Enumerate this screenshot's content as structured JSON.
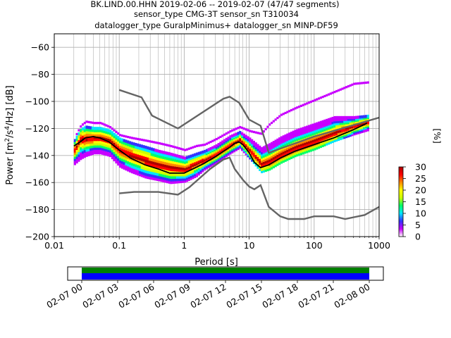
{
  "title_lines": [
    "BK.LIND.00.HHN   2019-02-06 -- 2019-02-07  (47/47 segments)",
    "sensor_type CMG-3T sensor_sn T310034",
    "datalogger_type GuralpMinimus+ datalogger_sn MINP-DF59"
  ],
  "chart_data": {
    "type": "heatmap",
    "xlabel": "Period [s]",
    "ylabel": "Power [m²/s⁴/Hz] [dB]",
    "x_scale": "log",
    "xlim": [
      0.01,
      1000
    ],
    "ylim": [
      -200,
      -50
    ],
    "x_ticks": [
      0.01,
      0.1,
      1,
      10,
      100,
      1000
    ],
    "x_tick_labels": [
      "0.01",
      "0.1",
      "1",
      "10",
      "100",
      "1000"
    ],
    "y_ticks": [
      -200,
      -180,
      -160,
      -140,
      -120,
      -100,
      -80,
      -60
    ],
    "y_tick_labels": [
      "−200",
      "−180",
      "−160",
      "−140",
      "−120",
      "−100",
      "−80",
      "−60"
    ],
    "grid": true,
    "colorbar": {
      "label": "[%]",
      "range": [
        0,
        30
      ],
      "ticks": [
        0,
        5,
        10,
        15,
        20,
        25,
        30
      ],
      "tick_labels": [
        "0",
        "5",
        "10",
        "15",
        "20",
        "25",
        "30"
      ],
      "colormap": [
        "#ffffff",
        "#c800ff",
        "#3333ff",
        "#00e5ff",
        "#00ff66",
        "#ccff00",
        "#ffff00",
        "#ff8800",
        "#ff0000",
        "#aa0000"
      ]
    },
    "mean_curve": {
      "color": "#000000",
      "points": [
        [
          0.02,
          -133
        ],
        [
          0.025,
          -130
        ],
        [
          0.03,
          -127
        ],
        [
          0.04,
          -126
        ],
        [
          0.05,
          -127
        ],
        [
          0.07,
          -130
        ],
        [
          0.1,
          -136
        ],
        [
          0.15,
          -142
        ],
        [
          0.25,
          -147
        ],
        [
          0.4,
          -150
        ],
        [
          0.6,
          -153
        ],
        [
          1,
          -153
        ],
        [
          1.5,
          -149
        ],
        [
          2,
          -146
        ],
        [
          3,
          -141
        ],
        [
          4,
          -137
        ],
        [
          5,
          -134
        ],
        [
          6,
          -131
        ],
        [
          7,
          -130
        ],
        [
          8,
          -132
        ],
        [
          10,
          -138
        ],
        [
          12,
          -145
        ],
        [
          15,
          -149
        ],
        [
          20,
          -147
        ],
        [
          30,
          -142
        ],
        [
          50,
          -137
        ],
        [
          100,
          -132
        ],
        [
          200,
          -127
        ],
        [
          400,
          -121
        ],
        [
          600,
          -117
        ],
        [
          650,
          -116
        ]
      ]
    },
    "noise_models": [
      {
        "color": "#646464",
        "points": [
          [
            0.1,
            -91.5
          ],
          [
            0.22,
            -97
          ],
          [
            0.32,
            -110.5
          ],
          [
            0.8,
            -120
          ],
          [
            4,
            -98
          ],
          [
            5,
            -96.5
          ],
          [
            7,
            -101
          ],
          [
            10,
            -113.5
          ],
          [
            15,
            -118
          ],
          [
            20,
            -138
          ],
          [
            100,
            -126
          ],
          [
            1000,
            -112
          ]
        ]
      },
      {
        "color": "#646464",
        "points": [
          [
            0.1,
            -168
          ],
          [
            0.17,
            -167
          ],
          [
            0.4,
            -167
          ],
          [
            0.8,
            -169
          ],
          [
            1.2,
            -163.5
          ],
          [
            2.5,
            -150
          ],
          [
            4,
            -143
          ],
          [
            5,
            -141.5
          ],
          [
            6,
            -150
          ],
          [
            8,
            -158
          ],
          [
            10,
            -163
          ],
          [
            12,
            -165
          ],
          [
            15,
            -162
          ],
          [
            20,
            -178
          ],
          [
            30,
            -185
          ],
          [
            40,
            -187
          ],
          [
            70,
            -187
          ],
          [
            100,
            -185
          ],
          [
            200,
            -185
          ],
          [
            300,
            -187
          ],
          [
            600,
            -184
          ],
          [
            1000,
            -178
          ]
        ]
      }
    ],
    "psd_samples": [
      {
        "period": 0.02,
        "values": [
          -146,
          -145,
          -138,
          -136,
          -132,
          -129,
          -127,
          -125
        ]
      },
      {
        "period": 0.025,
        "values": [
          -142,
          -138,
          -133,
          -128,
          -124,
          -121,
          -118
        ]
      },
      {
        "period": 0.03,
        "values": [
          -140,
          -136,
          -132,
          -128,
          -124,
          -119,
          -115,
          -112
        ]
      },
      {
        "period": 0.04,
        "values": [
          -138,
          -135,
          -131,
          -127,
          -123,
          -120,
          -116,
          -113
        ]
      },
      {
        "period": 0.05,
        "values": [
          -138,
          -134,
          -130,
          -127,
          -123,
          -120,
          -116,
          -114
        ]
      },
      {
        "period": 0.07,
        "values": [
          -140,
          -136,
          -132,
          -129,
          -125,
          -122,
          -119,
          -117
        ]
      },
      {
        "period": 0.1,
        "values": [
          -148,
          -144,
          -140,
          -136,
          -132,
          -128,
          -125,
          -121
        ]
      },
      {
        "period": 0.15,
        "values": [
          -152,
          -148,
          -144,
          -140,
          -136,
          -131,
          -127,
          -123
        ]
      },
      {
        "period": 0.25,
        "values": [
          -156,
          -152,
          -148,
          -144,
          -140,
          -134,
          -129,
          -124
        ]
      },
      {
        "period": 0.4,
        "values": [
          -158,
          -155,
          -151,
          -147,
          -143,
          -137,
          -131,
          -124
        ]
      },
      {
        "period": 0.6,
        "values": [
          -160,
          -157,
          -153,
          -149,
          -145,
          -139,
          -133,
          -124
        ]
      },
      {
        "period": 1,
        "values": [
          -159,
          -156,
          -153,
          -150,
          -147,
          -142,
          -136,
          -127
        ]
      },
      {
        "period": 1.5,
        "values": [
          -155,
          -152,
          -149,
          -146,
          -143,
          -139,
          -133
        ]
      },
      {
        "period": 2,
        "values": [
          -150,
          -148,
          -146,
          -143,
          -140,
          -137,
          -132
        ]
      },
      {
        "period": 3,
        "values": [
          -145,
          -143,
          -141,
          -139,
          -136,
          -133,
          -128
        ]
      },
      {
        "period": 5,
        "values": [
          -138,
          -136,
          -134,
          -132,
          -130,
          -126,
          -122
        ]
      },
      {
        "period": 7,
        "values": [
          -134,
          -132,
          -130,
          -128,
          -126,
          -123,
          -119
        ]
      },
      {
        "period": 10,
        "values": [
          -142,
          -140,
          -138,
          -136,
          -132,
          -128,
          -122
        ]
      },
      {
        "period": 15,
        "values": [
          -152,
          -150,
          -148,
          -146,
          -144,
          -135,
          -124
        ]
      },
      {
        "period": 20,
        "values": [
          -150,
          -148,
          -146,
          -144,
          -142,
          -132,
          -117
        ]
      },
      {
        "period": 30,
        "values": [
          -145,
          -143,
          -141,
          -139,
          -137,
          -127,
          -110
        ]
      },
      {
        "period": 50,
        "values": [
          -140,
          -138,
          -136,
          -134,
          -132,
          -122,
          -105
        ]
      },
      {
        "period": 100,
        "values": [
          -135,
          -133,
          -131,
          -129,
          -127,
          -117,
          -99
        ]
      },
      {
        "period": 200,
        "values": [
          -129,
          -127,
          -125,
          -123,
          -121,
          -112,
          -93
        ]
      },
      {
        "period": 400,
        "values": [
          -124,
          -122,
          -120,
          -118,
          -116,
          -112,
          -87
        ]
      },
      {
        "period": 650,
        "values": [
          -121,
          -119,
          -117,
          -115,
          -113,
          -111,
          -86
        ]
      }
    ]
  },
  "timeline": {
    "tick_labels": [
      "02-07 00",
      "02-07 03",
      "02-07 06",
      "02-07 09",
      "02-07 12",
      "02-07 15",
      "02-07 18",
      "02-07 21",
      "02-08 00"
    ],
    "bar_colors": [
      "#008000",
      "#0000ff"
    ]
  }
}
